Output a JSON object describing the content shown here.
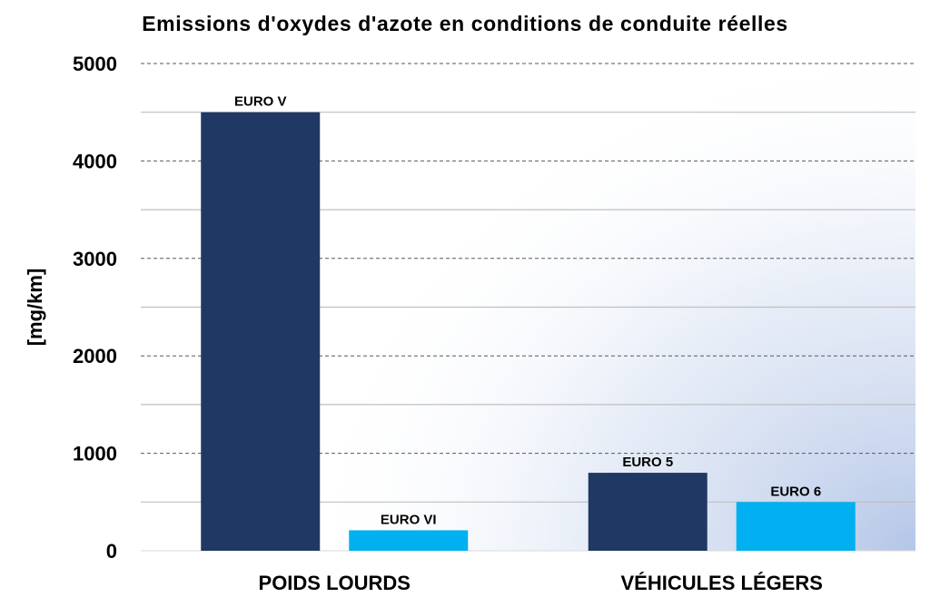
{
  "chart_data": {
    "type": "bar",
    "title": "Emissions d'oxydes d'azote en conditions de conduite réelles",
    "xlabel": "",
    "ylabel": "[mg/km]",
    "ylim": [
      0,
      5000
    ],
    "yticks": [
      0,
      1000,
      2000,
      3000,
      4000,
      5000
    ],
    "grid": true,
    "legend": "none",
    "categories": [
      "POIDS LOURDS",
      "VÉHICULES LÉGERS"
    ],
    "bars": [
      {
        "category": "POIDS LOURDS",
        "label": "EURO V",
        "value": 4500,
        "color": "#1f3864"
      },
      {
        "category": "POIDS LOURDS",
        "label": "EURO VI",
        "value": 210,
        "color": "#00b0f0"
      },
      {
        "category": "VÉHICULES LÉGERS",
        "label": "EURO 5",
        "value": 800,
        "color": "#1f3864"
      },
      {
        "category": "VÉHICULES LÉGERS",
        "label": "EURO 6",
        "value": 500,
        "color": "#00b0f0"
      }
    ]
  }
}
